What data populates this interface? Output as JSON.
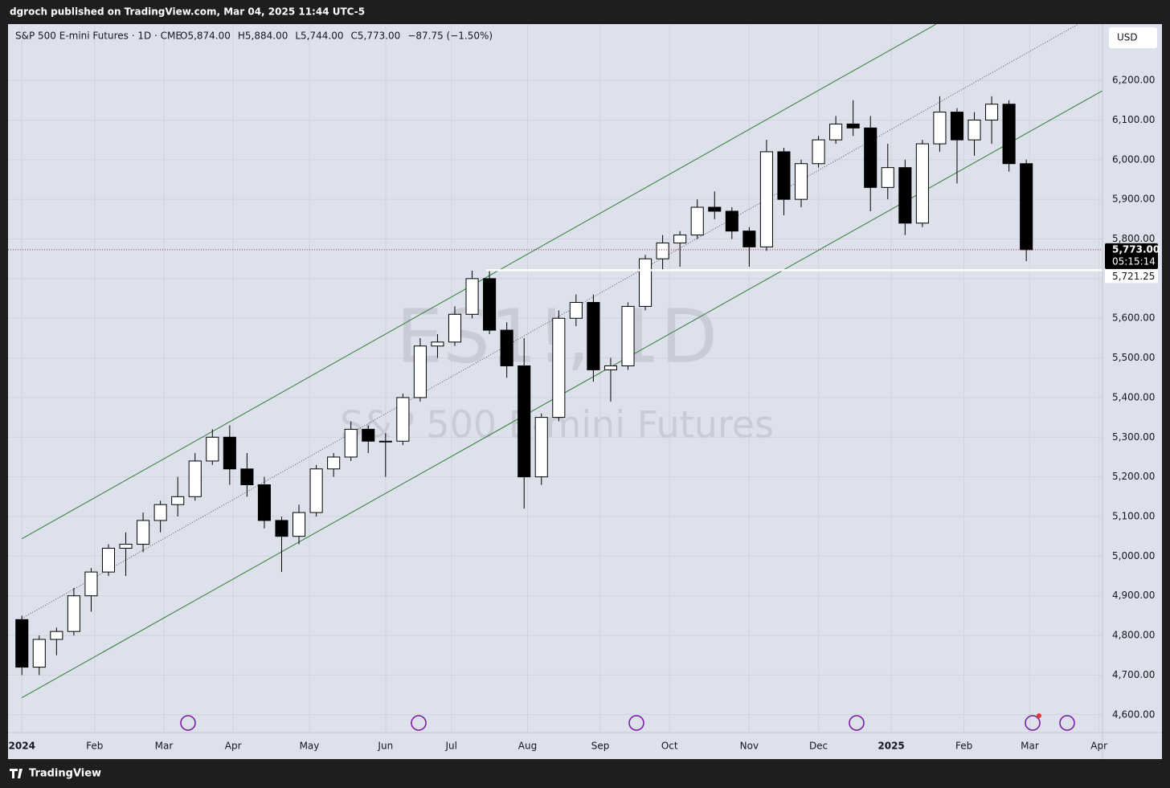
{
  "header": {
    "publisher": "dgroch published on TradingView.com, Mar 04, 2025 11:44 UTC-5"
  },
  "footer": {
    "brand": "TradingView"
  },
  "chart_data": {
    "type": "candlestick",
    "title": "S&P 500 E-mini Futures · 1D · CME",
    "ohlc_labels": [
      "O5,874.00",
      "H5,884.00",
      "L5,744.00",
      "C5,773.00",
      "−87.75 (−1.50%)"
    ],
    "watermark": [
      "ES1!, 1D",
      "S&P 500 E-mini Futures"
    ],
    "currency": "USD",
    "up_color": "#ffffff",
    "down_color": "#000000",
    "grid": true,
    "x": [
      0,
      5,
      10,
      15,
      20,
      25,
      30,
      35,
      40,
      45,
      50,
      55,
      60,
      65,
      70,
      75,
      80,
      85,
      90,
      95,
      100,
      105,
      110,
      115,
      120,
      125,
      130,
      135,
      140,
      145,
      150,
      155,
      160,
      165,
      170,
      175,
      180,
      185,
      190,
      195,
      200,
      205,
      210,
      215,
      220,
      225,
      230,
      235,
      240,
      245,
      250,
      255,
      260,
      265,
      270,
      275,
      280,
      285,
      290
    ],
    "open": [
      4840,
      4720,
      4790,
      4810,
      4900,
      4960,
      5020,
      5030,
      5090,
      5130,
      5150,
      5240,
      5300,
      5220,
      5180,
      5090,
      5050,
      5110,
      5220,
      5250,
      5320,
      5290,
      5290,
      5400,
      5530,
      5540,
      5610,
      5700,
      5570,
      5480,
      5200,
      5350,
      5600,
      5640,
      5470,
      5480,
      5630,
      5750,
      5790,
      5810,
      5880,
      5870,
      5820,
      5780,
      6020,
      5900,
      5990,
      6050,
      6090,
      6080,
      5930,
      5980,
      5840,
      6040,
      6120,
      6050,
      6100,
      6140,
      5990
    ],
    "high": [
      4850,
      4800,
      4820,
      4920,
      4970,
      5030,
      5060,
      5110,
      5140,
      5200,
      5260,
      5320,
      5330,
      5260,
      5200,
      5100,
      5130,
      5230,
      5260,
      5340,
      5330,
      5310,
      5410,
      5550,
      5560,
      5630,
      5720,
      5720,
      5590,
      5550,
      5360,
      5620,
      5660,
      5660,
      5500,
      5640,
      5760,
      5810,
      5820,
      5900,
      5920,
      5880,
      5830,
      6050,
      6030,
      6000,
      6060,
      6110,
      6150,
      6110,
      6040,
      6000,
      6050,
      6160,
      6130,
      6120,
      6160,
      6150,
      6000
    ],
    "low": [
      4700,
      4700,
      4750,
      4800,
      4860,
      4950,
      4950,
      5010,
      5060,
      5100,
      5140,
      5230,
      5180,
      5150,
      5070,
      4960,
      5030,
      5100,
      5200,
      5240,
      5260,
      5200,
      5280,
      5390,
      5500,
      5530,
      5600,
      5560,
      5450,
      5120,
      5180,
      5340,
      5580,
      5440,
      5390,
      5470,
      5620,
      5720,
      5730,
      5800,
      5850,
      5800,
      5730,
      5770,
      5860,
      5880,
      5980,
      6040,
      6060,
      5870,
      5900,
      5810,
      5830,
      6020,
      5940,
      6010,
      6040,
      5970,
      5744
    ],
    "close": [
      4720,
      4790,
      4810,
      4900,
      4960,
      5020,
      5030,
      5090,
      5130,
      5150,
      5240,
      5300,
      5220,
      5180,
      5090,
      5050,
      5110,
      5220,
      5250,
      5320,
      5290,
      5290,
      5400,
      5530,
      5540,
      5610,
      5700,
      5570,
      5480,
      5200,
      5350,
      5600,
      5640,
      5470,
      5480,
      5630,
      5750,
      5790,
      5810,
      5880,
      5870,
      5820,
      5780,
      6020,
      5900,
      5990,
      6050,
      6090,
      6080,
      5930,
      5980,
      5840,
      6040,
      6120,
      6050,
      6100,
      6140,
      5990,
      5773
    ],
    "xlim": [
      -4,
      312
    ],
    "xticks": [
      {
        "value": 0,
        "label": "2024"
      },
      {
        "value": 21,
        "label": "Feb"
      },
      {
        "value": 41,
        "label": "Mar"
      },
      {
        "value": 61,
        "label": "Apr"
      },
      {
        "value": 83,
        "label": "May"
      },
      {
        "value": 105,
        "label": "Jun"
      },
      {
        "value": 124,
        "label": "Jul"
      },
      {
        "value": 146,
        "label": "Aug"
      },
      {
        "value": 167,
        "label": "Sep"
      },
      {
        "value": 187,
        "label": "Oct"
      },
      {
        "value": 210,
        "label": "Nov"
      },
      {
        "value": 230,
        "label": "Dec"
      },
      {
        "value": 251,
        "label": "2025"
      },
      {
        "value": 272,
        "label": "Feb"
      },
      {
        "value": 291,
        "label": "Mar"
      },
      {
        "value": 311,
        "label": "Apr"
      }
    ],
    "ylim": [
      4555,
      6342
    ],
    "yticks": [
      {
        "value": 4600,
        "label": "4,600.00"
      },
      {
        "value": 4700,
        "label": "4,700.00"
      },
      {
        "value": 4800,
        "label": "4,800.00"
      },
      {
        "value": 4900,
        "label": "4,900.00"
      },
      {
        "value": 5000,
        "label": "5,000.00"
      },
      {
        "value": 5100,
        "label": "5,100.00"
      },
      {
        "value": 5200,
        "label": "5,200.00"
      },
      {
        "value": 5300,
        "label": "5,300.00"
      },
      {
        "value": 5400,
        "label": "5,400.00"
      },
      {
        "value": 5500,
        "label": "5,500.00"
      },
      {
        "value": 5600,
        "label": "5,600.00"
      },
      {
        "value": 5700,
        "label": "5,700.00"
      },
      {
        "value": 5800,
        "label": "5,800.00"
      },
      {
        "value": 5900,
        "label": "5,900.00"
      },
      {
        "value": 6000,
        "label": "6,000.00"
      },
      {
        "value": 6100,
        "label": "6,100.00"
      },
      {
        "value": 6200,
        "label": "6,200.00"
      }
    ],
    "trendlines": [
      {
        "color": "#2e7d32",
        "style": "solid",
        "x": [
          0,
          264
        ],
        "y": [
          5044,
          6342
        ]
      },
      {
        "color": "#2e7d32",
        "style": "solid",
        "x": [
          0,
          312
        ],
        "y": [
          4643,
          6174
        ]
      },
      {
        "color": "#555555",
        "style": "dotted",
        "x": [
          0,
          305
        ],
        "y": [
          4843,
          6342
        ]
      }
    ],
    "level": {
      "value": 5721.25,
      "label": "5,721.25",
      "x_start": 134,
      "color": "#ffffff"
    },
    "last_price": {
      "value": 5773,
      "label": "5,773.00",
      "countdown": "05:15:14",
      "color": "#c2185b"
    }
  }
}
